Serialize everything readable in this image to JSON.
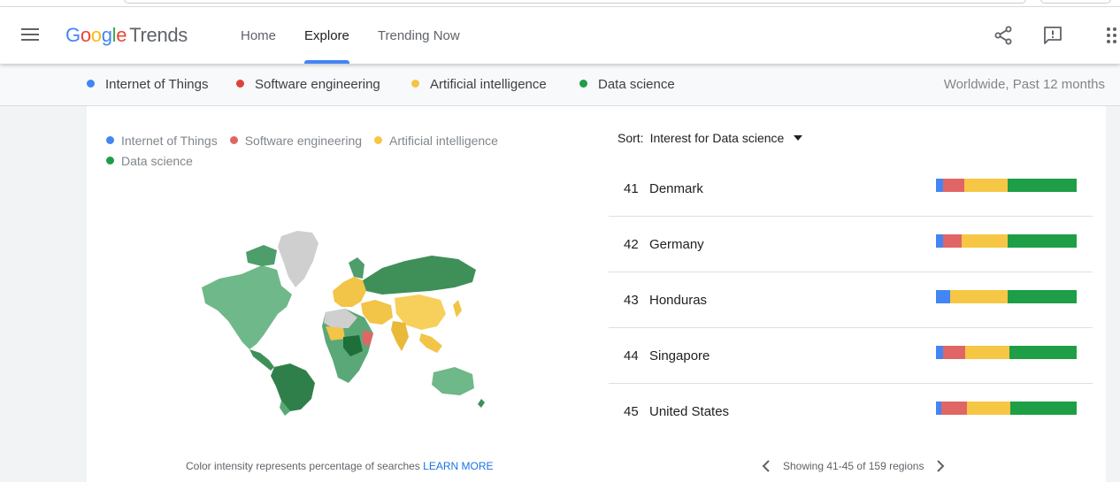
{
  "header": {
    "logo_google": [
      "G",
      "o",
      "o",
      "g",
      "l",
      "e"
    ],
    "logo_trends": "Trends",
    "nav": [
      {
        "label": "Home",
        "active": false
      },
      {
        "label": "Explore",
        "active": true
      },
      {
        "label": "Trending Now",
        "active": false
      }
    ],
    "icons": [
      "menu-icon",
      "share-icon",
      "feedback-icon",
      "apps-icon"
    ]
  },
  "terms": [
    {
      "label": "Internet of Things",
      "color": "#4285f4"
    },
    {
      "label": "Software engineering",
      "color": "#db4437"
    },
    {
      "label": "Artificial intelligence",
      "color": "#f4c542"
    },
    {
      "label": "Data science",
      "color": "#1e9e46"
    }
  ],
  "geo_time": "Worldwide, Past 12 months",
  "legend": [
    {
      "label": "Internet of Things",
      "color": "#4285f4"
    },
    {
      "label": "Software engineering",
      "color": "#e06666"
    },
    {
      "label": "Artificial intelligence",
      "color": "#f6c645"
    },
    {
      "label": "Data science",
      "color": "#1e9e46"
    }
  ],
  "map_note": {
    "text": "Color intensity represents percentage of searches",
    "link": "LEARN MORE"
  },
  "sort": {
    "label": "Sort:",
    "value": "Interest for Data science"
  },
  "regions": [
    {
      "rank": "41",
      "name": "Denmark",
      "shares": [
        0.05,
        0.15,
        0.31,
        0.49
      ]
    },
    {
      "rank": "42",
      "name": "Germany",
      "shares": [
        0.05,
        0.13,
        0.33,
        0.49
      ]
    },
    {
      "rank": "43",
      "name": "Honduras",
      "shares": [
        0.1,
        0.0,
        0.41,
        0.49
      ]
    },
    {
      "rank": "44",
      "name": "Singapore",
      "shares": [
        0.05,
        0.16,
        0.31,
        0.48
      ]
    },
    {
      "rank": "45",
      "name": "United States",
      "shares": [
        0.04,
        0.18,
        0.31,
        0.47
      ]
    }
  ],
  "pager": {
    "text": "Showing 41-45 of 159 regions",
    "prev_icon": "chevron-left-icon",
    "next_icon": "chevron-right-icon"
  },
  "colors": {
    "blue": "#4285f4",
    "red": "#e06666",
    "yellow": "#f6c645",
    "green": "#1e9e46"
  }
}
